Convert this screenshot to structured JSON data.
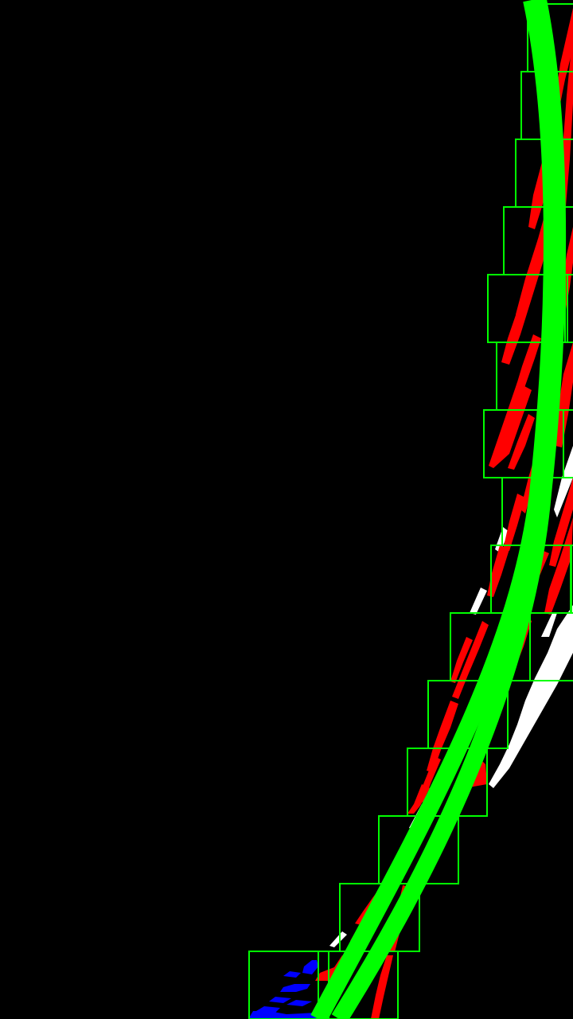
{
  "view": {
    "background_color": "#000000"
  },
  "colors": {
    "lane_fit": "#00ff00",
    "search_window": "#00ff00",
    "right_lane_pixels": "#ff0000",
    "left_lane_pixels": "#0000ff",
    "unassigned_pixels": "#ffffff"
  },
  "layers": [
    {
      "name": "unassigned-lane-pixels",
      "color_key": "unassigned_pixels"
    },
    {
      "name": "right-lane-pixels",
      "color_key": "right_lane_pixels"
    },
    {
      "name": "left-lane-pixels",
      "color_key": "left_lane_pixels"
    },
    {
      "name": "sliding-windows",
      "color_key": "search_window",
      "count": 15
    },
    {
      "name": "lane-fit-curves",
      "color_key": "lane_fit",
      "count": 2
    }
  ]
}
